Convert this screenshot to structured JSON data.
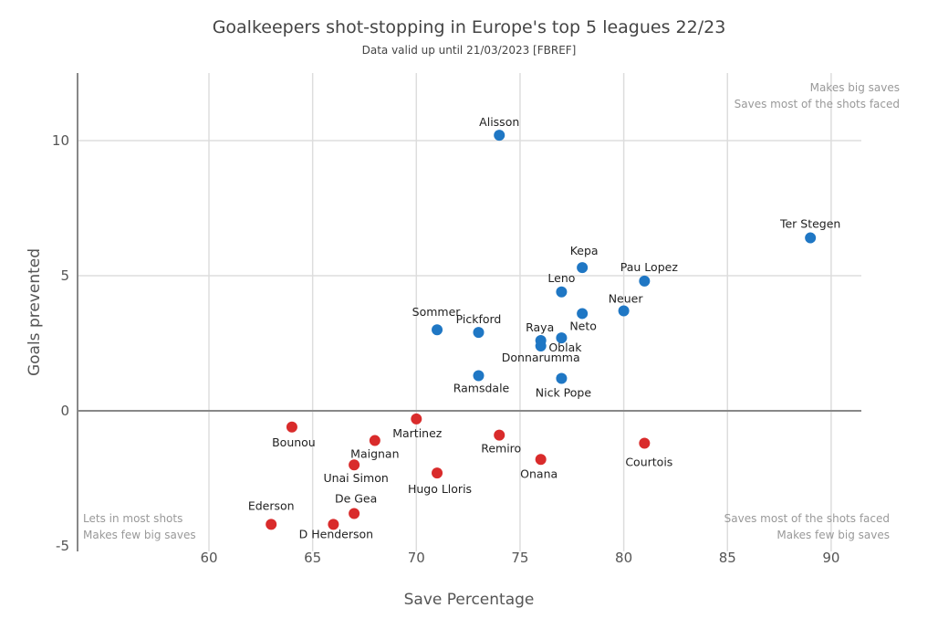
{
  "chart_data": {
    "type": "scatter",
    "title": "Goalkeepers shot-stopping in Europe's top 5 leagues 22/23",
    "subtitle": "Data valid up until 21/03/2023 [FBREF]",
    "xlabel": "Save Percentage",
    "ylabel": "Goals prevented",
    "xlim": [
      54.5,
      91.5
    ],
    "ylim": [
      -5,
      12.5
    ],
    "xticks": [
      60,
      65,
      70,
      75,
      80,
      85,
      90
    ],
    "yticks": [
      -5,
      0,
      5,
      10
    ],
    "grid": true,
    "colors": {
      "positive": "#1f77c4",
      "negative": "#d92b2b"
    },
    "annotations": {
      "top_right": [
        "Makes big saves",
        "Saves most of the shots faced"
      ],
      "bottom_left": [
        "Lets in most shots",
        "Makes few big saves"
      ],
      "bottom_right": [
        "Saves most of the shots faced",
        "Makes few big saves"
      ]
    },
    "points": [
      {
        "name": "Alisson",
        "x": 74,
        "y": 10.2
      },
      {
        "name": "Ter Stegen",
        "x": 89,
        "y": 6.4
      },
      {
        "name": "Kepa",
        "x": 78,
        "y": 5.3
      },
      {
        "name": "Pau Lopez",
        "x": 81,
        "y": 4.8
      },
      {
        "name": "Leno",
        "x": 77,
        "y": 4.4
      },
      {
        "name": "Neuer",
        "x": 80,
        "y": 3.7
      },
      {
        "name": "Neto",
        "x": 78,
        "y": 3.6
      },
      {
        "name": "Sommer",
        "x": 71,
        "y": 3.0
      },
      {
        "name": "Pickford",
        "x": 73,
        "y": 2.9
      },
      {
        "name": "Raya",
        "x": 76,
        "y": 2.6
      },
      {
        "name": "Oblak",
        "x": 77,
        "y": 2.7
      },
      {
        "name": "Donnarumma",
        "x": 76,
        "y": 2.4
      },
      {
        "name": "Ramsdale",
        "x": 73,
        "y": 1.3
      },
      {
        "name": "Nick Pope",
        "x": 77,
        "y": 1.2
      },
      {
        "name": "Martinez",
        "x": 70,
        "y": -0.3
      },
      {
        "name": "Bounou",
        "x": 64,
        "y": -0.6
      },
      {
        "name": "Maignan",
        "x": 68,
        "y": -1.1
      },
      {
        "name": "Remiro",
        "x": 74,
        "y": -0.9
      },
      {
        "name": "Courtois",
        "x": 81,
        "y": -1.2
      },
      {
        "name": "Onana",
        "x": 76,
        "y": -1.8
      },
      {
        "name": "Unai Simon",
        "x": 67,
        "y": -2.0
      },
      {
        "name": "Hugo Lloris",
        "x": 71,
        "y": -2.3
      },
      {
        "name": "De Gea",
        "x": 67,
        "y": -3.8
      },
      {
        "name": "Ederson",
        "x": 63,
        "y": -4.2
      },
      {
        "name": "D Henderson",
        "x": 66,
        "y": -4.2
      }
    ]
  }
}
